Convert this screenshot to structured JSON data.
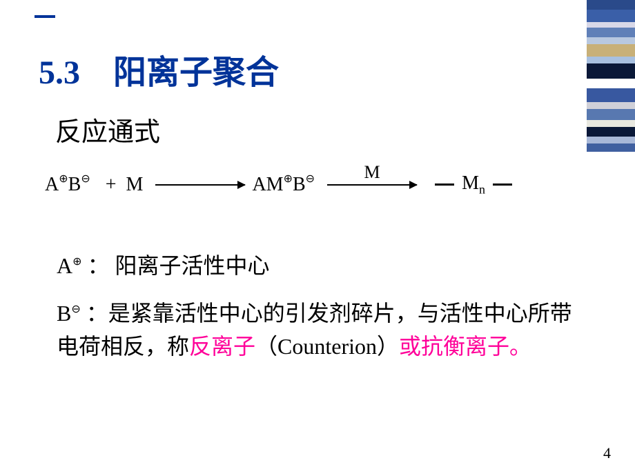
{
  "deco_bars": [
    {
      "h": 14,
      "color": "#2a4a8a"
    },
    {
      "h": 18,
      "color": "#3a5fa8"
    },
    {
      "h": 8,
      "color": "#d8d8e8"
    },
    {
      "h": 14,
      "color": "#6080b8"
    },
    {
      "h": 10,
      "color": "#b8c8e0"
    },
    {
      "h": 18,
      "color": "#c8b078"
    },
    {
      "h": 10,
      "color": "#a8c0e0"
    },
    {
      "h": 22,
      "color": "#0a1838"
    },
    {
      "h": 14,
      "color": "#ffffff"
    },
    {
      "h": 20,
      "color": "#3858a0"
    },
    {
      "h": 10,
      "color": "#d0d0d8"
    },
    {
      "h": 16,
      "color": "#5878b0"
    },
    {
      "h": 10,
      "color": "#e8e8e0"
    },
    {
      "h": 14,
      "color": "#0a1838"
    },
    {
      "h": 10,
      "color": "#a8b8d8"
    },
    {
      "h": 12,
      "color": "#4060a0"
    }
  ],
  "title": "5.3　阳离子聚合",
  "subtitle": "反应通式",
  "equation": {
    "A": "A",
    "plus_circ": "⊕",
    "B": "B",
    "minus_circ": "⊖",
    "plus": "+",
    "M": "M",
    "AM": "AM",
    "M_label": "M",
    "Mn_M": "M",
    "Mn_n": "n"
  },
  "def1": {
    "symbol_A": "A",
    "symbol_charge": "⊕",
    "colon": "：",
    "text": "阳离子活性中心"
  },
  "def2": {
    "symbol_B": "B",
    "symbol_charge": "⊖",
    "colon": "：",
    "text1": "是紧靠活性中心的引发剂碎片，与活性中心所带电荷相反，称",
    "hl1": "反离子",
    "text2": "（Counterion）",
    "hl2": "或抗衡离子。"
  },
  "page_num": "4"
}
